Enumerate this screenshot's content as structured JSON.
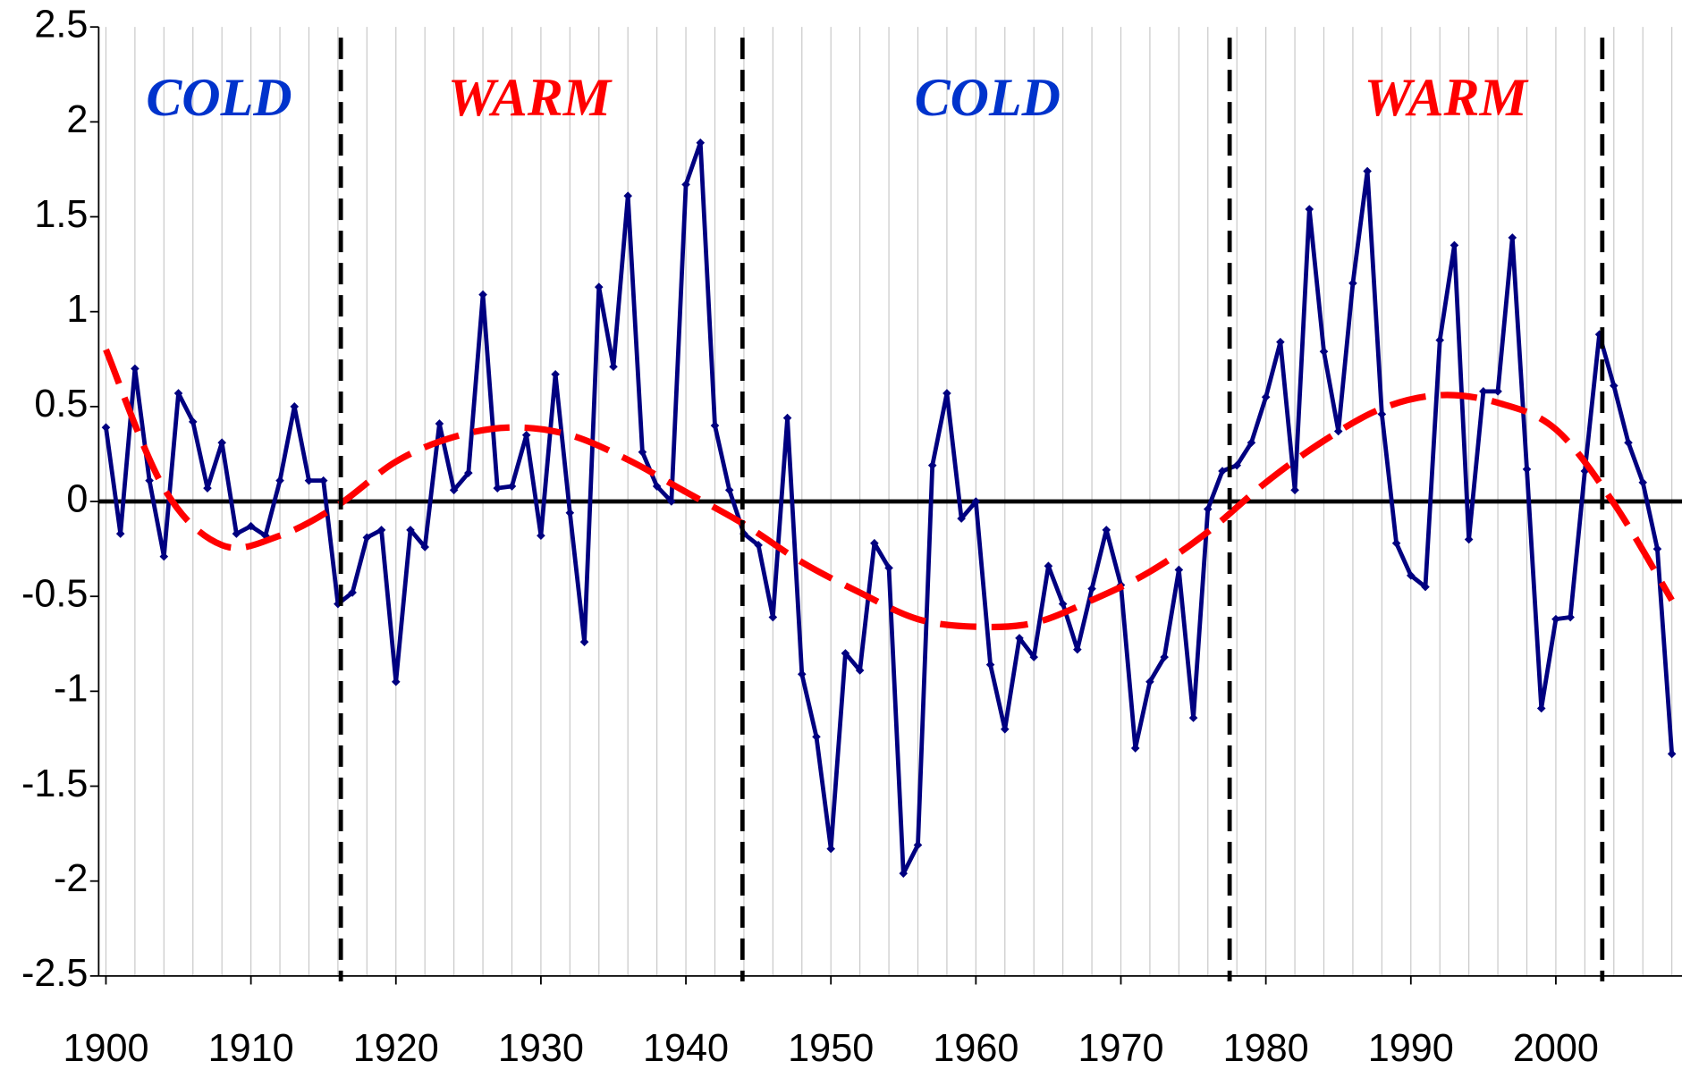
{
  "chart_data": {
    "type": "line",
    "x": [
      1900,
      1901,
      1902,
      1903,
      1904,
      1905,
      1906,
      1907,
      1908,
      1909,
      1910,
      1911,
      1912,
      1913,
      1914,
      1915,
      1916,
      1917,
      1918,
      1919,
      1920,
      1921,
      1922,
      1923,
      1924,
      1925,
      1926,
      1927,
      1928,
      1929,
      1930,
      1931,
      1932,
      1933,
      1934,
      1935,
      1936,
      1937,
      1938,
      1939,
      1940,
      1941,
      1942,
      1943,
      1944,
      1945,
      1946,
      1947,
      1948,
      1949,
      1950,
      1951,
      1952,
      1953,
      1954,
      1955,
      1956,
      1957,
      1958,
      1959,
      1960,
      1961,
      1962,
      1963,
      1964,
      1965,
      1966,
      1967,
      1968,
      1969,
      1970,
      1971,
      1972,
      1973,
      1974,
      1975,
      1976,
      1977,
      1978,
      1979,
      1980,
      1981,
      1982,
      1983,
      1984,
      1985,
      1986,
      1987,
      1988,
      1989,
      1990,
      1991,
      1992,
      1993,
      1994,
      1995,
      1996,
      1997,
      1998,
      1999,
      2000,
      2001,
      2002,
      2003,
      2004,
      2005,
      2006,
      2007,
      2008
    ],
    "series": [
      {
        "color": "#000080",
        "values": [
          0.39,
          -0.17,
          0.7,
          0.11,
          -0.29,
          0.57,
          0.42,
          0.07,
          0.31,
          -0.17,
          -0.13,
          -0.18,
          0.11,
          0.5,
          0.11,
          0.11,
          -0.54,
          -0.48,
          -0.19,
          -0.15,
          -0.95,
          -0.15,
          -0.24,
          0.41,
          0.06,
          0.15,
          1.09,
          0.07,
          0.08,
          0.35,
          -0.18,
          0.67,
          -0.06,
          -0.74,
          1.13,
          0.71,
          1.61,
          0.26,
          0.08,
          0.0,
          1.67,
          1.89,
          0.4,
          0.06,
          -0.17,
          -0.23,
          -0.61,
          0.44,
          -0.91,
          -1.24,
          -1.83,
          -0.8,
          -0.89,
          -0.22,
          -0.35,
          -1.96,
          -1.81,
          0.19,
          0.57,
          -0.09,
          0.0,
          -0.86,
          -1.2,
          -0.72,
          -0.82,
          -0.34,
          -0.54,
          -0.78,
          -0.46,
          -0.15,
          -0.44,
          -1.3,
          -0.95,
          -0.82,
          -0.36,
          -1.14,
          -0.04,
          0.16,
          0.19,
          0.31,
          0.55,
          0.84,
          0.06,
          1.54,
          0.79,
          0.37,
          1.15,
          1.74,
          0.46,
          -0.22,
          -0.39,
          -0.45,
          0.85,
          1.35,
          -0.2,
          0.58,
          0.58,
          1.39,
          0.17,
          -1.09,
          -0.62,
          -0.61,
          0.16,
          0.88,
          0.61,
          0.31,
          0.1,
          -0.25,
          -1.33
        ]
      },
      {
        "color": "#ff0000",
        "dashed": true,
        "x": [
          1900,
          1904,
          1908,
          1912,
          1916,
          1920,
          1924,
          1928,
          1932,
          1936,
          1940,
          1944,
          1948,
          1952,
          1956,
          1960,
          1964,
          1968,
          1972,
          1976,
          1980,
          1984,
          1988,
          1992,
          1996,
          2000,
          2004,
          2008
        ],
        "values": [
          0.8,
          0.07,
          -0.23,
          -0.18,
          -0.02,
          0.21,
          0.34,
          0.39,
          0.35,
          0.22,
          0.05,
          -0.12,
          -0.32,
          -0.48,
          -0.62,
          -0.66,
          -0.64,
          -0.52,
          -0.37,
          -0.16,
          0.1,
          0.32,
          0.49,
          0.56,
          0.52,
          0.38,
          -0.01,
          -0.52
        ]
      }
    ],
    "xlim": [
      1899.5,
      2008.7
    ],
    "xticks": [
      1900,
      1910,
      1920,
      1930,
      1940,
      1950,
      1960,
      1970,
      1980,
      1990,
      2000
    ],
    "xgrid": [
      1900,
      1902,
      1904,
      1906,
      1908,
      1910,
      1912,
      1914,
      1916,
      1918,
      1920,
      1922,
      1924,
      1926,
      1928,
      1930,
      1932,
      1934,
      1936,
      1938,
      1940,
      1942,
      1944,
      1946,
      1948,
      1950,
      1952,
      1954,
      1956,
      1958,
      1960,
      1962,
      1964,
      1966,
      1968,
      1970,
      1972,
      1974,
      1976,
      1978,
      1980,
      1982,
      1984,
      1986,
      1988,
      1990,
      1992,
      1994,
      1996,
      1998,
      2000,
      2002,
      2004,
      2006,
      2008
    ],
    "ylim": [
      -2.5,
      2.5
    ],
    "yticks": [
      2.5,
      2,
      1.5,
      1,
      0.5,
      0,
      -0.5,
      -1,
      -1.5,
      -2,
      -2.5
    ],
    "zero_line": 0,
    "dividers": [
      1916.2,
      1943.9,
      1977.5,
      2003.2
    ],
    "annotations": [
      {
        "text": "COLD",
        "x": 1907.8,
        "y": 2.1,
        "color": "#0033cc"
      },
      {
        "text": "WARM",
        "x": 1929.2,
        "y": 2.1,
        "color": "#ff0000"
      },
      {
        "text": "COLD",
        "x": 1960.8,
        "y": 2.1,
        "color": "#0033cc"
      },
      {
        "text": "WARM",
        "x": 1992.4,
        "y": 2.1,
        "color": "#ff0000"
      }
    ]
  }
}
